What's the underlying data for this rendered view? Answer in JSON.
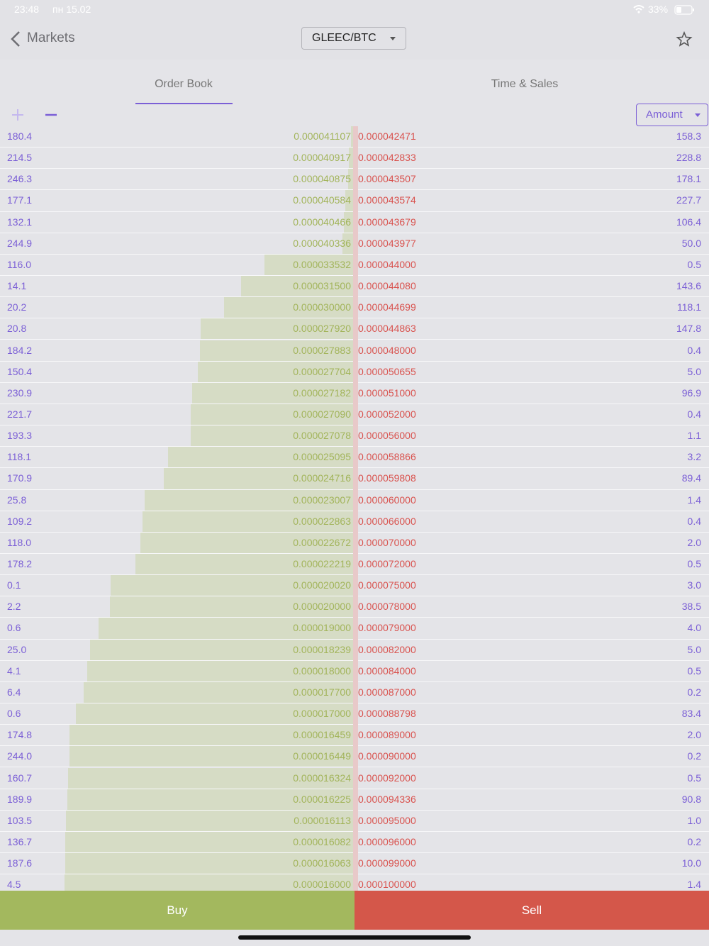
{
  "status_bar": {
    "time": "23:48",
    "date": "пн 15.02",
    "battery": "33%"
  },
  "nav": {
    "back": "Markets",
    "pair": "GLEEC/BTC"
  },
  "tabs": [
    "Order Book",
    "Time & Sales"
  ],
  "controls": {
    "sort": "Amount"
  },
  "order_book": {
    "rows": [
      [
        "180.4",
        "0.000041107",
        "0.000042471",
        "158.3"
      ],
      [
        "214.5",
        "0.000040917",
        "0.000042833",
        "228.8"
      ],
      [
        "246.3",
        "0.000040875",
        "0.000043507",
        "178.1"
      ],
      [
        "177.1",
        "0.000040584",
        "0.000043574",
        "227.7"
      ],
      [
        "132.1",
        "0.000040466",
        "0.000043679",
        "106.4"
      ],
      [
        "244.9",
        "0.000040336",
        "0.000043977",
        "50.0"
      ],
      [
        "116.0",
        "0.000033532",
        "0.000044000",
        "0.5"
      ],
      [
        "14.1",
        "0.000031500",
        "0.000044080",
        "143.6"
      ],
      [
        "20.2",
        "0.000030000",
        "0.000044699",
        "118.1"
      ],
      [
        "20.8",
        "0.000027920",
        "0.000044863",
        "147.8"
      ],
      [
        "184.2",
        "0.000027883",
        "0.000048000",
        "0.4"
      ],
      [
        "150.4",
        "0.000027704",
        "0.000050655",
        "5.0"
      ],
      [
        "230.9",
        "0.000027182",
        "0.000051000",
        "96.9"
      ],
      [
        "221.7",
        "0.000027090",
        "0.000052000",
        "0.4"
      ],
      [
        "193.3",
        "0.000027078",
        "0.000056000",
        "1.1"
      ],
      [
        "118.1",
        "0.000025095",
        "0.000058866",
        "3.2"
      ],
      [
        "170.9",
        "0.000024716",
        "0.000059808",
        "89.4"
      ],
      [
        "25.8",
        "0.000023007",
        "0.000060000",
        "1.4"
      ],
      [
        "109.2",
        "0.000022863",
        "0.000066000",
        "0.4"
      ],
      [
        "118.0",
        "0.000022672",
        "0.000070000",
        "2.0"
      ],
      [
        "178.2",
        "0.000022219",
        "0.000072000",
        "0.5"
      ],
      [
        "0.1",
        "0.000020020",
        "0.000075000",
        "3.0"
      ],
      [
        "2.2",
        "0.000020000",
        "0.000078000",
        "38.5"
      ],
      [
        "0.6",
        "0.000019000",
        "0.000079000",
        "4.0"
      ],
      [
        "25.0",
        "0.000018239",
        "0.000082000",
        "5.0"
      ],
      [
        "4.1",
        "0.000018000",
        "0.000084000",
        "0.5"
      ],
      [
        "6.4",
        "0.000017700",
        "0.000087000",
        "0.2"
      ],
      [
        "0.6",
        "0.000017000",
        "0.000088798",
        "83.4"
      ],
      [
        "174.8",
        "0.000016459",
        "0.000089000",
        "2.0"
      ],
      [
        "244.0",
        "0.000016449",
        "0.000090000",
        "0.2"
      ],
      [
        "160.7",
        "0.000016324",
        "0.000092000",
        "0.5"
      ],
      [
        "189.9",
        "0.000016225",
        "0.000094336",
        "90.8"
      ],
      [
        "103.5",
        "0.000016113",
        "0.000095000",
        "1.0"
      ],
      [
        "136.7",
        "0.000016082",
        "0.000096000",
        "0.2"
      ],
      [
        "187.6",
        "0.000016063",
        "0.000099000",
        "10.0"
      ],
      [
        "4.5",
        "0.000016000",
        "0.000100000",
        "1.4"
      ]
    ]
  },
  "actions": {
    "buy": "Buy",
    "sell": "Sell"
  }
}
